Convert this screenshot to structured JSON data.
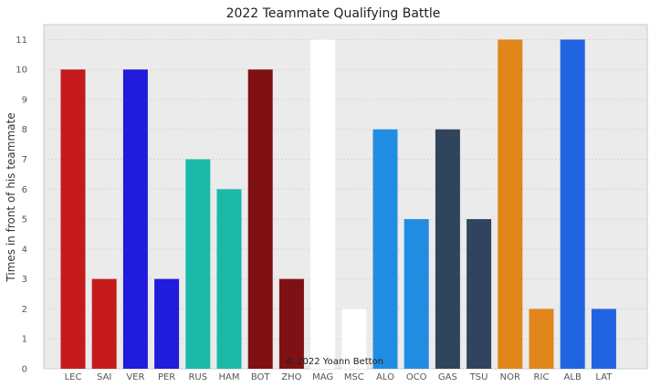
{
  "chart_data": {
    "type": "bar",
    "title": "2022 Teammate Qualifying Battle",
    "xlabel": "",
    "ylabel": "Times in front of his teammate",
    "ylim": [
      0,
      11.5
    ],
    "yticks": [
      0,
      1,
      2,
      3,
      4,
      5,
      6,
      7,
      8,
      9,
      10,
      11
    ],
    "grid": "horizontal",
    "categories": [
      "LEC",
      "SAI",
      "VER",
      "PER",
      "RUS",
      "HAM",
      "BOT",
      "ZHO",
      "MAG",
      "MSC",
      "ALO",
      "OCO",
      "GAS",
      "TSU",
      "NOR",
      "RIC",
      "ALB",
      "LAT"
    ],
    "values": [
      10,
      3,
      10,
      3,
      7,
      6,
      10,
      3,
      11,
      2,
      8,
      5,
      8,
      5,
      11,
      2,
      11,
      2
    ],
    "colors": [
      "#c41a1c",
      "#c41a1c",
      "#211bdb",
      "#211bdb",
      "#1ab9a8",
      "#1ab9a8",
      "#7f1114",
      "#7f1114",
      "#ffffff",
      "#ffffff",
      "#208de3",
      "#208de3",
      "#31445d",
      "#31445d",
      "#e0861b",
      "#e0861b",
      "#2064e1",
      "#2064e1"
    ],
    "background": "#ebebeb",
    "annotations": [
      "© 2022 Yoann Betton"
    ]
  }
}
